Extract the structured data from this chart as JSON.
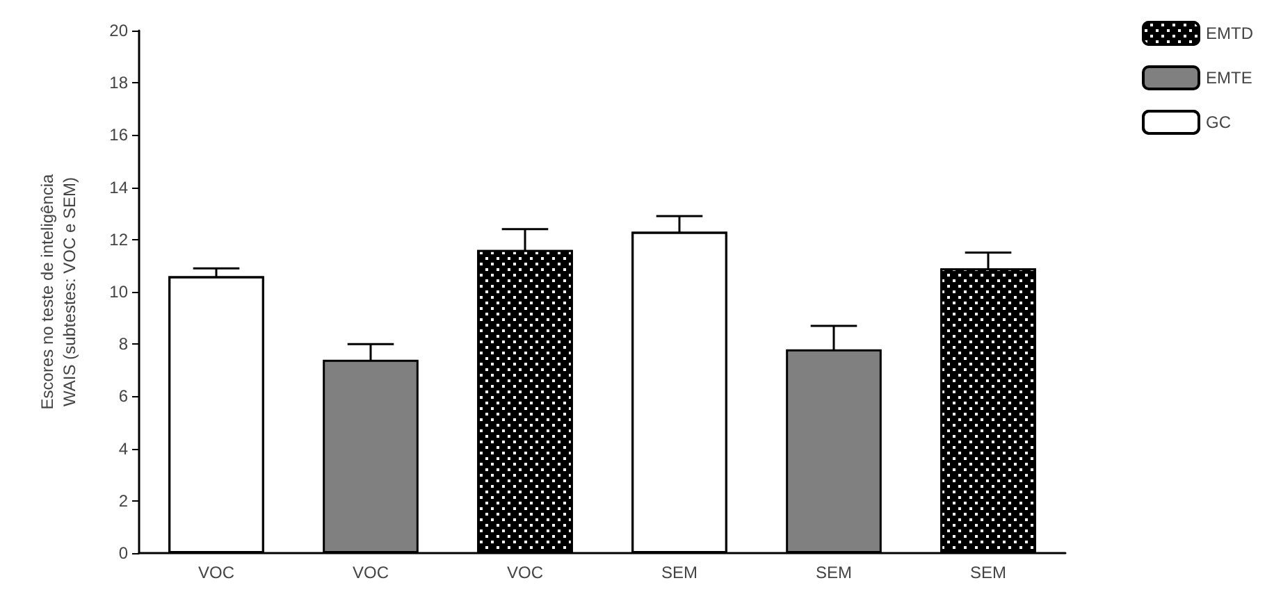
{
  "chart_data": {
    "type": "bar",
    "ylabel": "Escores no teste de inteligência\nWAIS (subtestes: VOC e SEM)",
    "categories": [
      "VOC",
      "VOC",
      "VOC",
      "SEM",
      "SEM",
      "SEM"
    ],
    "series": [
      {
        "name": "EMTD",
        "color": "#000000",
        "values": [
          null,
          null,
          11.6,
          null,
          null,
          10.9
        ],
        "errors": [
          null,
          null,
          0.8,
          null,
          null,
          0.6
        ]
      },
      {
        "name": "EMTE",
        "color": "#808080",
        "values": [
          null,
          7.4,
          null,
          null,
          7.8,
          null
        ],
        "errors": [
          null,
          0.6,
          null,
          null,
          0.9,
          null
        ]
      },
      {
        "name": "GC",
        "color": "#ffffff",
        "values": [
          10.6,
          null,
          null,
          12.3,
          null,
          null
        ],
        "errors": [
          0.3,
          null,
          null,
          0.6,
          null,
          null
        ]
      }
    ],
    "ylim": [
      0,
      20
    ],
    "yticks": [
      0,
      2,
      4,
      6,
      8,
      10,
      12,
      14,
      16,
      18,
      20
    ],
    "grid": false,
    "legend": "top right"
  }
}
